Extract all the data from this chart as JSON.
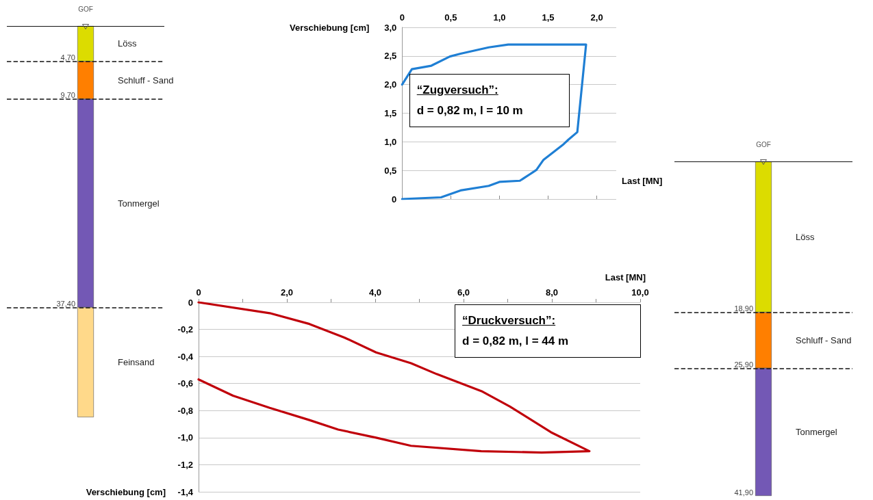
{
  "chart_data": [
    {
      "type": "bar",
      "stacked": true,
      "categories": [
        null
      ],
      "series": [
        {
          "name": "Löss",
          "color": "#dcdc00",
          "values": [
            4.7
          ]
        },
        {
          "name": "Schluff - Sand",
          "color": "#ff7f00",
          "values": [
            5.0
          ]
        },
        {
          "name": "Tonmergel",
          "color": "#7358b5",
          "values": [
            27.7
          ]
        },
        {
          "name": "Feinsand",
          "color": "#ffd98a",
          "values": [
            14.6
          ]
        }
      ],
      "ylim": [
        52,
        0
      ],
      "yticks": [
        {
          "value": 4.7,
          "label": "4,70"
        },
        {
          "value": 9.7,
          "label": "9,70"
        },
        {
          "value": 37.4,
          "label": "37,40"
        }
      ],
      "tick_labels": "y",
      "ref_lines": [
        {
          "axis": "y",
          "value": 0,
          "line_style": "solid"
        },
        {
          "axis": "y",
          "value": 4.7,
          "line_style": "dashed"
        },
        {
          "axis": "y",
          "value": 9.7,
          "line_style": "dashed"
        },
        {
          "axis": "y",
          "value": 37.4,
          "line_style": "dashed"
        }
      ],
      "annotations": [
        "GOF"
      ]
    },
    {
      "type": "line",
      "xlabel": "Last [MN]",
      "ylabel": "Verschiebung [cm]",
      "series": [
        {
          "color": "#1f7fd4",
          "x": [
            0,
            0.1,
            0.3,
            0.49,
            0.6,
            0.89,
            1.09,
            1.89,
            1.8,
            1.71,
            1.66,
            1.45,
            1.38,
            1.31,
            1.21,
            1.0,
            0.89,
            0.6,
            0.4,
            0
          ],
          "values": [
            2.0,
            2.27,
            2.33,
            2.49,
            2.54,
            2.65,
            2.7,
            2.7,
            1.17,
            1.04,
            0.96,
            0.68,
            0.51,
            0.43,
            0.32,
            0.3,
            0.23,
            0.15,
            0.03,
            0
          ]
        }
      ],
      "xlim": [
        0,
        2.2
      ],
      "xticks": [
        0,
        {
          "value": 0.5,
          "label": "0,5"
        },
        {
          "value": 1,
          "label": "1,0"
        },
        {
          "value": 1.5,
          "label": "1,5"
        },
        {
          "value": 2,
          "label": "2,0"
        }
      ],
      "ylim": [
        0,
        3
      ],
      "yticks": [
        0,
        {
          "value": 0.5,
          "label": "0,5"
        },
        {
          "value": 1,
          "label": "1,0"
        },
        {
          "value": 1.5,
          "label": "1,5"
        },
        {
          "value": 2,
          "label": "2,0"
        },
        {
          "value": 2.5,
          "label": "2,5"
        },
        {
          "value": 3,
          "label": "3,0"
        }
      ],
      "grid": "y",
      "annotations": [
        "“Zugversuch”:",
        "d = 0,82 m, l = 10 m"
      ]
    },
    {
      "type": "line",
      "xlabel": "Last [MN]",
      "ylabel": "Verschiebung [cm]",
      "series": [
        {
          "color": "#c0000a",
          "x": [
            0,
            1.61,
            2.51,
            3.3,
            4.02,
            4.81,
            5.39,
            6.43,
            7.05,
            7.98,
            8.85,
            7.77,
            6.4,
            4.81,
            4.02,
            3.16,
            2.51,
            1.61,
            0.78,
            0
          ],
          "values": [
            0,
            -0.08,
            -0.16,
            -0.26,
            -0.37,
            -0.45,
            -0.53,
            -0.66,
            -0.77,
            -0.96,
            -1.1,
            -1.11,
            -1.1,
            -1.06,
            -1.0,
            -0.94,
            -0.87,
            -0.78,
            -0.69,
            -0.57
          ]
        }
      ],
      "xlim": [
        0,
        10
      ],
      "xticks": [
        0,
        {
          "value": 1,
          "label": null
        },
        {
          "value": 2,
          "label": "2,0"
        },
        {
          "value": 3,
          "label": null
        },
        {
          "value": 4,
          "label": "4,0"
        },
        {
          "value": 5,
          "label": null
        },
        {
          "value": 6,
          "label": "6,0"
        },
        {
          "value": 7,
          "label": null
        },
        {
          "value": 8,
          "label": "8,0"
        },
        {
          "value": 9,
          "label": null
        },
        {
          "value": 10,
          "label": "10,0"
        }
      ],
      "ylim": [
        -1.4,
        0
      ],
      "yticks": [
        {
          "value": -1.4,
          "label": "-1,4"
        },
        {
          "value": -1.2,
          "label": "-1,2"
        },
        {
          "value": -1,
          "label": "-1,0"
        },
        {
          "value": -0.8,
          "label": "-0,8"
        },
        {
          "value": -0.6,
          "label": "-0,6"
        },
        {
          "value": -0.4,
          "label": "-0,4"
        },
        {
          "value": -0.2,
          "label": "-0,2"
        },
        0
      ],
      "grid": "y",
      "annotations": [
        "“Druckversuch”:",
        "d = 0,82 m, l = 44 m"
      ]
    },
    {
      "type": "bar",
      "stacked": true,
      "categories": [
        null
      ],
      "series": [
        {
          "name": "Löss",
          "color": "#dcdc00",
          "values": [
            18.9
          ]
        },
        {
          "name": "Schluff - Sand",
          "color": "#ff7f00",
          "values": [
            7.0
          ]
        },
        {
          "name": "Tonmergel",
          "color": "#7358b5",
          "values": [
            16.0
          ]
        }
      ],
      "ylim": [
        41.9,
        0
      ],
      "yticks": [
        {
          "value": 18.9,
          "label": "18,90"
        },
        {
          "value": 25.9,
          "label": "25,90"
        },
        {
          "value": 41.9,
          "label": "41,90"
        }
      ],
      "tick_labels": "y",
      "ref_lines": [
        {
          "axis": "y",
          "value": 0,
          "line_style": "solid"
        },
        {
          "axis": "y",
          "value": 18.9,
          "line_style": "dashed"
        },
        {
          "axis": "y",
          "value": 25.9,
          "line_style": "dashed"
        }
      ],
      "annotations": [
        "GOF"
      ]
    }
  ]
}
